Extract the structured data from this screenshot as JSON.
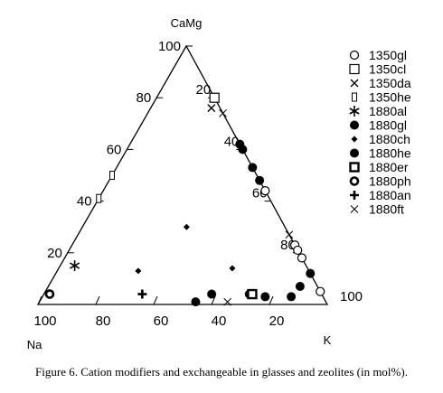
{
  "chart_data": {
    "type": "ternary-scatter",
    "vertices": {
      "top": "CaMg",
      "left": "Na",
      "right": "K"
    },
    "left_edge_ticks": [
      "20",
      "40",
      "60",
      "80",
      "100"
    ],
    "right_edge_ticks": [
      "20",
      "40",
      "60",
      "80",
      "100"
    ],
    "bottom_edge_ticks": [
      "100",
      "80",
      "60",
      "40",
      "20"
    ],
    "series": [
      {
        "name": "1350gl",
        "marker": "circle-open",
        "points": [
          {
            "CaMg": 44,
            "Na": 0,
            "K": 56
          },
          {
            "CaMg": 23,
            "Na": 0,
            "K": 77
          },
          {
            "CaMg": 21,
            "Na": 0,
            "K": 79
          },
          {
            "CaMg": 18,
            "Na": 0,
            "K": 82
          },
          {
            "CaMg": 5,
            "Na": 0,
            "K": 95
          }
        ]
      },
      {
        "name": "1350cl",
        "marker": "square-open",
        "points": [
          {
            "CaMg": 80,
            "Na": 0,
            "K": 20
          }
        ]
      },
      {
        "name": "1350da",
        "marker": "x",
        "points": [
          {
            "CaMg": 76,
            "Na": 3,
            "K": 21
          }
        ]
      },
      {
        "name": "1350he",
        "marker": "rect-open",
        "points": [
          {
            "CaMg": 50,
            "Na": 50,
            "K": 0
          },
          {
            "CaMg": 41,
            "Na": 59,
            "K": 0
          }
        ]
      },
      {
        "name": "1880al",
        "marker": "star",
        "points": [
          {
            "CaMg": 15,
            "Na": 80,
            "K": 5
          }
        ]
      },
      {
        "name": "1880gl",
        "marker": "circle-filled",
        "points": [
          {
            "CaMg": 62,
            "Na": 0,
            "K": 38
          },
          {
            "CaMg": 60,
            "Na": 0,
            "K": 40
          },
          {
            "CaMg": 53,
            "Na": 0,
            "K": 47
          },
          {
            "CaMg": 48,
            "Na": 0,
            "K": 52
          },
          {
            "CaMg": 12,
            "Na": 0,
            "K": 88
          },
          {
            "CaMg": 7,
            "Na": 6,
            "K": 87
          },
          {
            "CaMg": 3,
            "Na": 11,
            "K": 86
          },
          {
            "CaMg": 3,
            "Na": 20,
            "K": 77
          },
          {
            "CaMg": 4,
            "Na": 25,
            "K": 71
          },
          {
            "CaMg": 1,
            "Na": 45,
            "K": 54
          }
        ]
      },
      {
        "name": "1880ch",
        "marker": "diamond",
        "points": [
          {
            "CaMg": 30,
            "Na": 34,
            "K": 36
          },
          {
            "CaMg": 13,
            "Na": 59,
            "K": 28
          },
          {
            "CaMg": 14,
            "Na": 26,
            "K": 60
          }
        ]
      },
      {
        "name": "1880he",
        "marker": "starburst",
        "points": [
          {
            "CaMg": 4,
            "Na": 38,
            "K": 58
          }
        ]
      },
      {
        "name": "1880er",
        "marker": "square-bold",
        "points": [
          {
            "CaMg": 4,
            "Na": 24,
            "K": 72
          }
        ]
      },
      {
        "name": "1880ph",
        "marker": "circle-bold",
        "points": [
          {
            "CaMg": 4,
            "Na": 94,
            "K": 2
          }
        ]
      },
      {
        "name": "1880an",
        "marker": "plus",
        "points": [
          {
            "CaMg": 4,
            "Na": 62,
            "K": 34
          }
        ]
      },
      {
        "name": "1880ft",
        "marker": "x-thin",
        "points": [
          {
            "CaMg": 74,
            "Na": 0,
            "K": 26
          },
          {
            "CaMg": 27,
            "Na": 0,
            "K": 73
          },
          {
            "CaMg": 1,
            "Na": 34,
            "K": 65
          }
        ]
      }
    ]
  },
  "caption": "Figure 6. Cation modifiers and exchangeable in glasses and zeolites (in mol%)."
}
